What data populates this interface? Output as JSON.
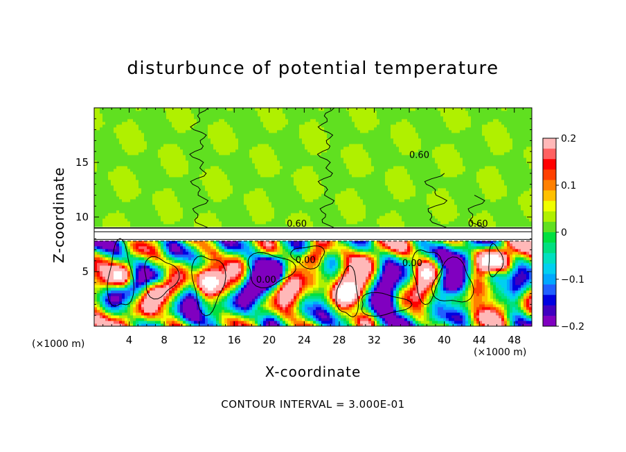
{
  "chart_data": {
    "type": "heatmap",
    "title": "disturbunce of potential temperature",
    "xlabel": "X-coordinate",
    "ylabel": "Z-coordinate",
    "x_unit": "(×1000 m)",
    "xlim": [
      0,
      50
    ],
    "ylim": [
      0,
      20
    ],
    "x_ticks": [
      4,
      8,
      12,
      16,
      20,
      24,
      28,
      32,
      36,
      40,
      44,
      48
    ],
    "y_ticks": [
      5,
      10,
      15
    ],
    "colorbar": {
      "range": [
        -0.2,
        0.2
      ],
      "tick_labels": [
        "0.2",
        "0.1",
        "0",
        "−0.1",
        "−0.2"
      ],
      "tick_values": [
        0.2,
        0.1,
        0,
        -0.1,
        -0.2
      ],
      "colors": [
        "#ffb8b8",
        "#ff6060",
        "#ff0000",
        "#ff4000",
        "#ff8000",
        "#ffc000",
        "#f0ff00",
        "#b0f000",
        "#60e020",
        "#00e040",
        "#00e080",
        "#00e0c0",
        "#00d0f0",
        "#00a8ff",
        "#2060ff",
        "#0000e0",
        "#4000c0",
        "#8000c0"
      ]
    },
    "contour_interval_text": "CONTOUR INTERVAL = 3.000E-01",
    "contour_labels": [
      "0.60",
      "0.00"
    ],
    "layers": {
      "upper_mean_value": 0.02,
      "inversion_top_z": 9,
      "inversion_bottom_z": 7.8
    }
  }
}
